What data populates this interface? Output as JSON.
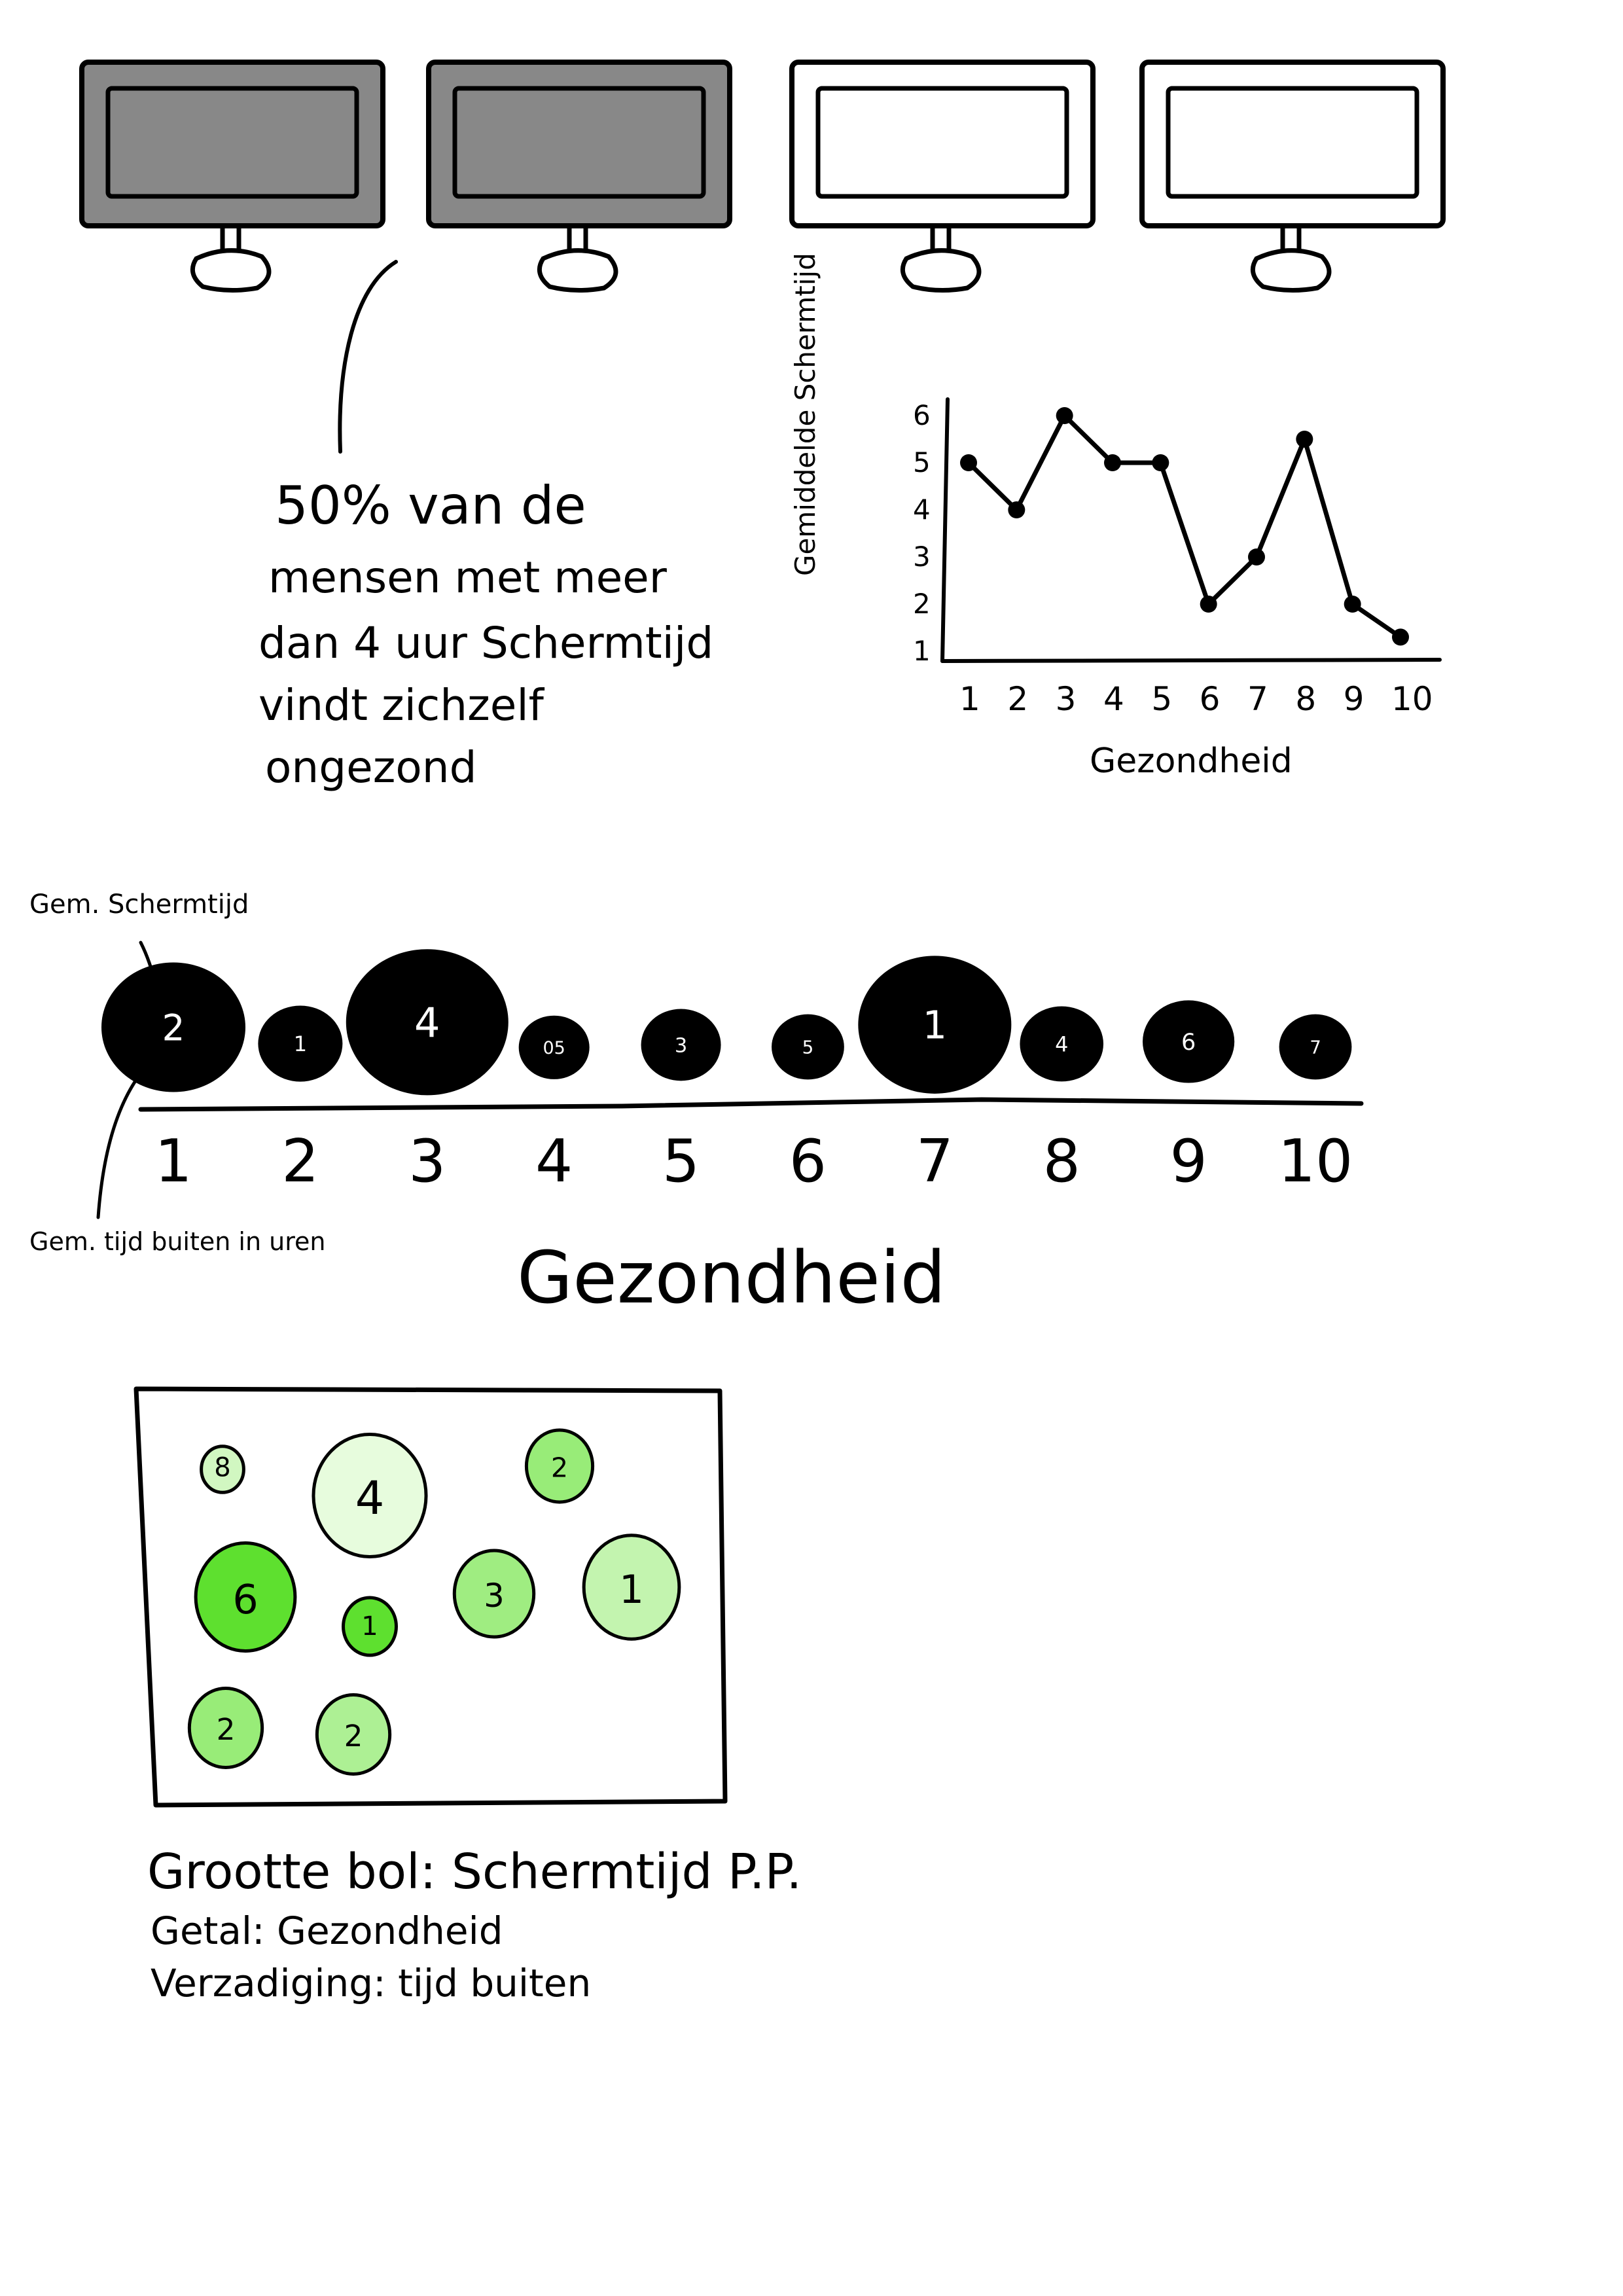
{
  "annotation": {
    "lines": [
      "50% van de",
      "mensen met meer",
      "dan 4 uur Schermtijd",
      "vindt zichzelf",
      "ongezond"
    ],
    "highlight_count": 2,
    "total_count": 4
  },
  "legend_text": {
    "lines": [
      "Grootte bol: Schermtijd P.P.",
      "Getal: Gezondheid",
      "Verzadiging: tijd buiten"
    ]
  },
  "colors": {
    "ink": "#000000",
    "monitor_dark": "#888888",
    "monitor_light": "#ffffff",
    "green_dark": "#5ee02f",
    "green_light": "#eefde6"
  },
  "chart_data": [
    {
      "type": "line",
      "x": [
        1,
        2,
        3,
        4,
        5,
        6,
        7,
        8,
        9,
        10
      ],
      "values": [
        5,
        4,
        6,
        5,
        5,
        2,
        3,
        5.5,
        2,
        1.3
      ],
      "ylabel": "Gemiddelde Schermtijd",
      "xlabel": "Gezondheid",
      "x_ticks": [
        "1",
        "2",
        "3",
        "4",
        "5",
        "6",
        "7",
        "8",
        "9",
        "10"
      ],
      "y_ticks": [
        "1",
        "2",
        "3",
        "4",
        "5",
        "6"
      ],
      "ylim": [
        1,
        6
      ],
      "grid": false
    },
    {
      "type": "scatter",
      "x": [
        1,
        2,
        3,
        4,
        5,
        6,
        7,
        8,
        9,
        10
      ],
      "x_ticks": [
        "1",
        "2",
        "3",
        "4",
        "5",
        "6",
        "7",
        "8",
        "9",
        "10"
      ],
      "xlabel": "Gezondheid",
      "bubble_labels": [
        "2",
        "1",
        "4",
        "05",
        "3",
        "5",
        "1",
        "4",
        "6",
        "7"
      ],
      "size_relative": [
        1.0,
        0.35,
        1.2,
        0.2,
        0.3,
        0.22,
        1.1,
        0.34,
        0.43,
        0.22
      ],
      "size_label": "Gem. Schermtijd",
      "number_label": "Gem. tijd buiten in uren",
      "grid": false
    },
    {
      "type": "scatter",
      "bubble_labels": [
        "8",
        "4",
        "2",
        "6",
        "1",
        "3",
        "1",
        "2",
        "2"
      ],
      "size_relative": [
        0.32,
        0.85,
        0.5,
        0.75,
        0.4,
        0.6,
        0.72,
        0.55,
        0.55
      ],
      "saturation": [
        0.2,
        0.05,
        0.6,
        1.0,
        1.0,
        0.55,
        0.3,
        0.6,
        0.45
      ],
      "grid": false
    }
  ]
}
